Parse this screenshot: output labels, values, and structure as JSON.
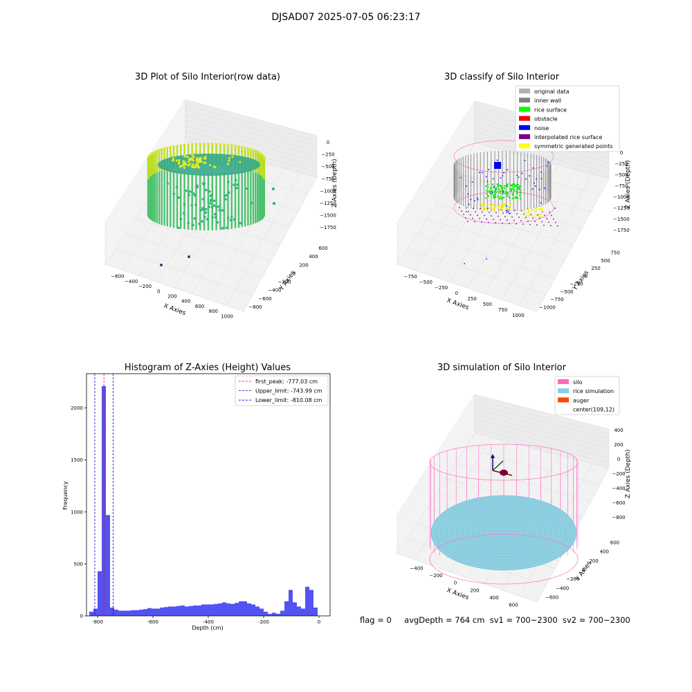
{
  "suptitle": "DJSAD07 2025-07-05 06:23:17",
  "panels": {
    "raw": {
      "title": "3D Plot of Silo Interior(row data)",
      "xlabel": "X Axies",
      "ylabel": "Y Axies",
      "zlabel": "Z Axies (Depth)",
      "xticks": [
        "−600",
        "−400",
        "−200",
        "0",
        "200",
        "400",
        "600",
        "800",
        "1000"
      ],
      "yticks": [
        "−800",
        "−600",
        "−400",
        "−200",
        "0",
        "200",
        "400",
        "600"
      ],
      "zticks": [
        "0",
        "−250",
        "−500",
        "−750",
        "−1000",
        "−1250",
        "−1500",
        "−1750"
      ],
      "colors": {
        "top": "#d2e21b",
        "mid": "#22a884",
        "low": "#35b779",
        "outlier": "#46327e"
      }
    },
    "classify": {
      "title": "3D classify of Silo Interior",
      "xlabel": "X Axies",
      "ylabel": "Y Axies",
      "zlabel": "Z Axies (Depth)",
      "xticks": [
        "−750",
        "−500",
        "−250",
        "0",
        "250",
        "500",
        "750",
        "1000"
      ],
      "yticks": [
        "−1000",
        "−750",
        "−500",
        "−250",
        "0",
        "250",
        "500",
        "750"
      ],
      "zticks": [
        "0",
        "−250",
        "−500",
        "−750",
        "−1000",
        "−1250",
        "−1500",
        "−1750"
      ],
      "legend": [
        {
          "label": "original data",
          "color": "#b0b0b0"
        },
        {
          "label": "inner wall",
          "color": "#808080"
        },
        {
          "label": "rice surface",
          "color": "#00ff00"
        },
        {
          "label": "obstacle",
          "color": "#ff0000"
        },
        {
          "label": "noise",
          "color": "#0000ff"
        },
        {
          "label": "interpolated rice surface",
          "color": "#800080"
        },
        {
          "label": "symmetric generated points",
          "color": "#ffff00"
        }
      ]
    },
    "histogram": {
      "title": "Histogram of Z-Axies (Height) Values",
      "xlabel": "Depth (cm)",
      "ylabel": "Frequency",
      "bar_color": "#4a4af0",
      "legend": [
        {
          "label": "first_peak: -777.03 cm",
          "color": "#ff0000"
        },
        {
          "label": "Upper_limit: -743.99 cm",
          "color": "#0000cc"
        },
        {
          "label": "Lower_limit: -810.08 cm",
          "color": "#0000cc"
        }
      ]
    },
    "simulation": {
      "title": "3D simulation of Silo Interior",
      "xlabel": "X Axies",
      "ylabel": "Y Axies",
      "zlabel": "Z Axies (Depth)",
      "xticks": [
        "−400",
        "−200",
        "0",
        "200",
        "400",
        "600"
      ],
      "yticks": [
        "−600",
        "−400",
        "−200",
        "0",
        "200",
        "400",
        "600"
      ],
      "zticks": [
        "400",
        "200",
        "0",
        "−200",
        "−400",
        "−600",
        "−800"
      ],
      "legend": [
        {
          "label": "silo",
          "color": "#ff69b4"
        },
        {
          "label": "rice simulation",
          "color": "#87ceeb"
        },
        {
          "label": "auger",
          "color": "#ff4500"
        },
        {
          "label": "center(109,12)",
          "color": "#ffffff"
        }
      ]
    }
  },
  "status": {
    "flag": "flag = 0",
    "avg": "avgDepth = 764 cm",
    "sv1": "sv1 = 700~2300",
    "sv2": "sv2 = 700~2300"
  },
  "chart_data": {
    "type": "bar",
    "title": "Histogram of Z-Axies (Height) Values",
    "xlabel": "Depth (cm)",
    "ylabel": "Frequency",
    "xlim": [
      -840,
      40
    ],
    "ylim": [
      0,
      2330
    ],
    "xticks": [
      -800,
      -600,
      -400,
      -200,
      0
    ],
    "yticks": [
      0,
      500,
      1000,
      1500,
      2000
    ],
    "bin_width": 15,
    "bin_starts": [
      -830,
      -815,
      -800,
      -785,
      -770,
      -755,
      -740,
      -725,
      -710,
      -695,
      -680,
      -665,
      -650,
      -635,
      -620,
      -605,
      -590,
      -575,
      -560,
      -545,
      -530,
      -515,
      -500,
      -485,
      -470,
      -455,
      -440,
      -425,
      -410,
      -395,
      -380,
      -365,
      -350,
      -335,
      -320,
      -305,
      -290,
      -275,
      -260,
      -245,
      -230,
      -215,
      -200,
      -185,
      -170,
      -155,
      -140,
      -125,
      -110,
      -95,
      -80,
      -65,
      -50,
      -35,
      -20,
      -5
    ],
    "values": [
      40,
      70,
      430,
      2210,
      970,
      80,
      60,
      50,
      50,
      50,
      55,
      55,
      60,
      65,
      75,
      70,
      70,
      80,
      85,
      90,
      90,
      95,
      100,
      90,
      95,
      100,
      100,
      110,
      110,
      110,
      115,
      120,
      130,
      120,
      115,
      125,
      140,
      140,
      120,
      110,
      90,
      70,
      40,
      20,
      30,
      20,
      50,
      140,
      250,
      130,
      90,
      70,
      280,
      250,
      80,
      0
    ],
    "lines": [
      {
        "name": "first_peak: -777.03 cm",
        "x": -777.03,
        "color": "#ff0000"
      },
      {
        "name": "Upper_limit: -743.99 cm",
        "x": -743.99,
        "color": "#0000cc"
      },
      {
        "name": "Lower_limit: -810.08 cm",
        "x": -810.08,
        "color": "#0000cc"
      }
    ],
    "legend_position": "top-right"
  }
}
